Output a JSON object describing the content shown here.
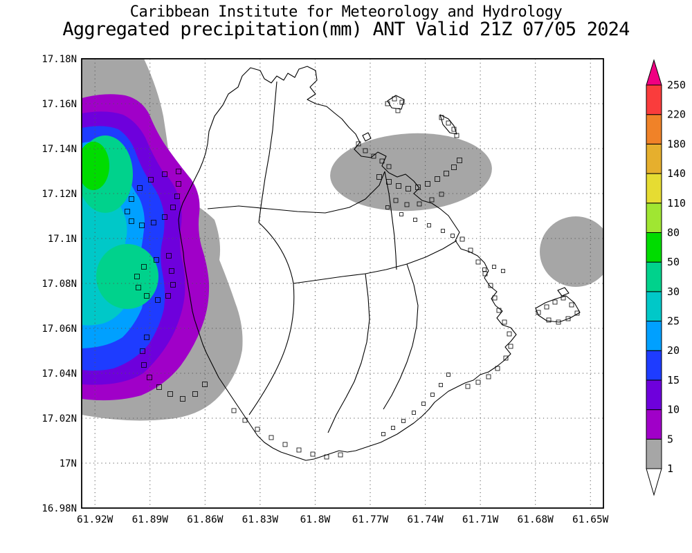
{
  "header": {
    "line1": "Caribbean Institute for Meteorology and Hydrology",
    "line2": "Aggregated precipitation(mm) ANT Valid 21Z 07/05 2024"
  },
  "chart_data": {
    "type": "heatmap",
    "title": "Aggregated precipitation(mm) ANT Valid 21Z 07/05 2024",
    "source": "Caribbean Institute for Meteorology and Hydrology",
    "variable": "Aggregated precipitation",
    "units": "mm",
    "domain_label": "ANT",
    "valid_time": "21Z 07/05 2024",
    "grid": "dotted lat-lon graticule",
    "lat_ticks": [
      "17.18N",
      "17.16N",
      "17.14N",
      "17.12N",
      "17.1N",
      "17.08N",
      "17.06N",
      "17.04N",
      "17.02N",
      "17N",
      "16.98N"
    ],
    "lon_ticks": [
      "61.92W",
      "61.89W",
      "61.86W",
      "61.83W",
      "61.8W",
      "61.77W",
      "61.74W",
      "61.71W",
      "61.68W",
      "61.65W"
    ],
    "colorbar": {
      "orientation": "vertical-right",
      "levels_low_to_high": [
        1,
        5,
        10,
        15,
        20,
        25,
        30,
        50,
        80,
        110,
        140,
        180,
        220,
        250
      ],
      "tick_labels_top_to_bottom": [
        "250",
        "220",
        "180",
        "140",
        "110",
        "80",
        "50",
        "30",
        "25",
        "20",
        "15",
        "10",
        "5",
        "1"
      ],
      "colors_low_to_high": [
        "#ffffff",
        "#a6a6a6",
        "#a000c8",
        "#6e00dc",
        "#1e3cff",
        "#00a0ff",
        "#00c8c8",
        "#00d28c",
        "#00dc00",
        "#a0e632",
        "#e6dc32",
        "#e6af2d",
        "#f08228",
        "#fa3c3c",
        "#f00082"
      ]
    },
    "precip_regions": [
      {
        "area": "west of island and west coast",
        "bands_mm": [
          1,
          5,
          10,
          15,
          20,
          25,
          30,
          50
        ],
        "max_band_mm": "50-80"
      },
      {
        "area": "north-central offshore",
        "band_mm": "1-5"
      },
      {
        "area": "east offshore",
        "band_mm": "1-5"
      }
    ]
  }
}
